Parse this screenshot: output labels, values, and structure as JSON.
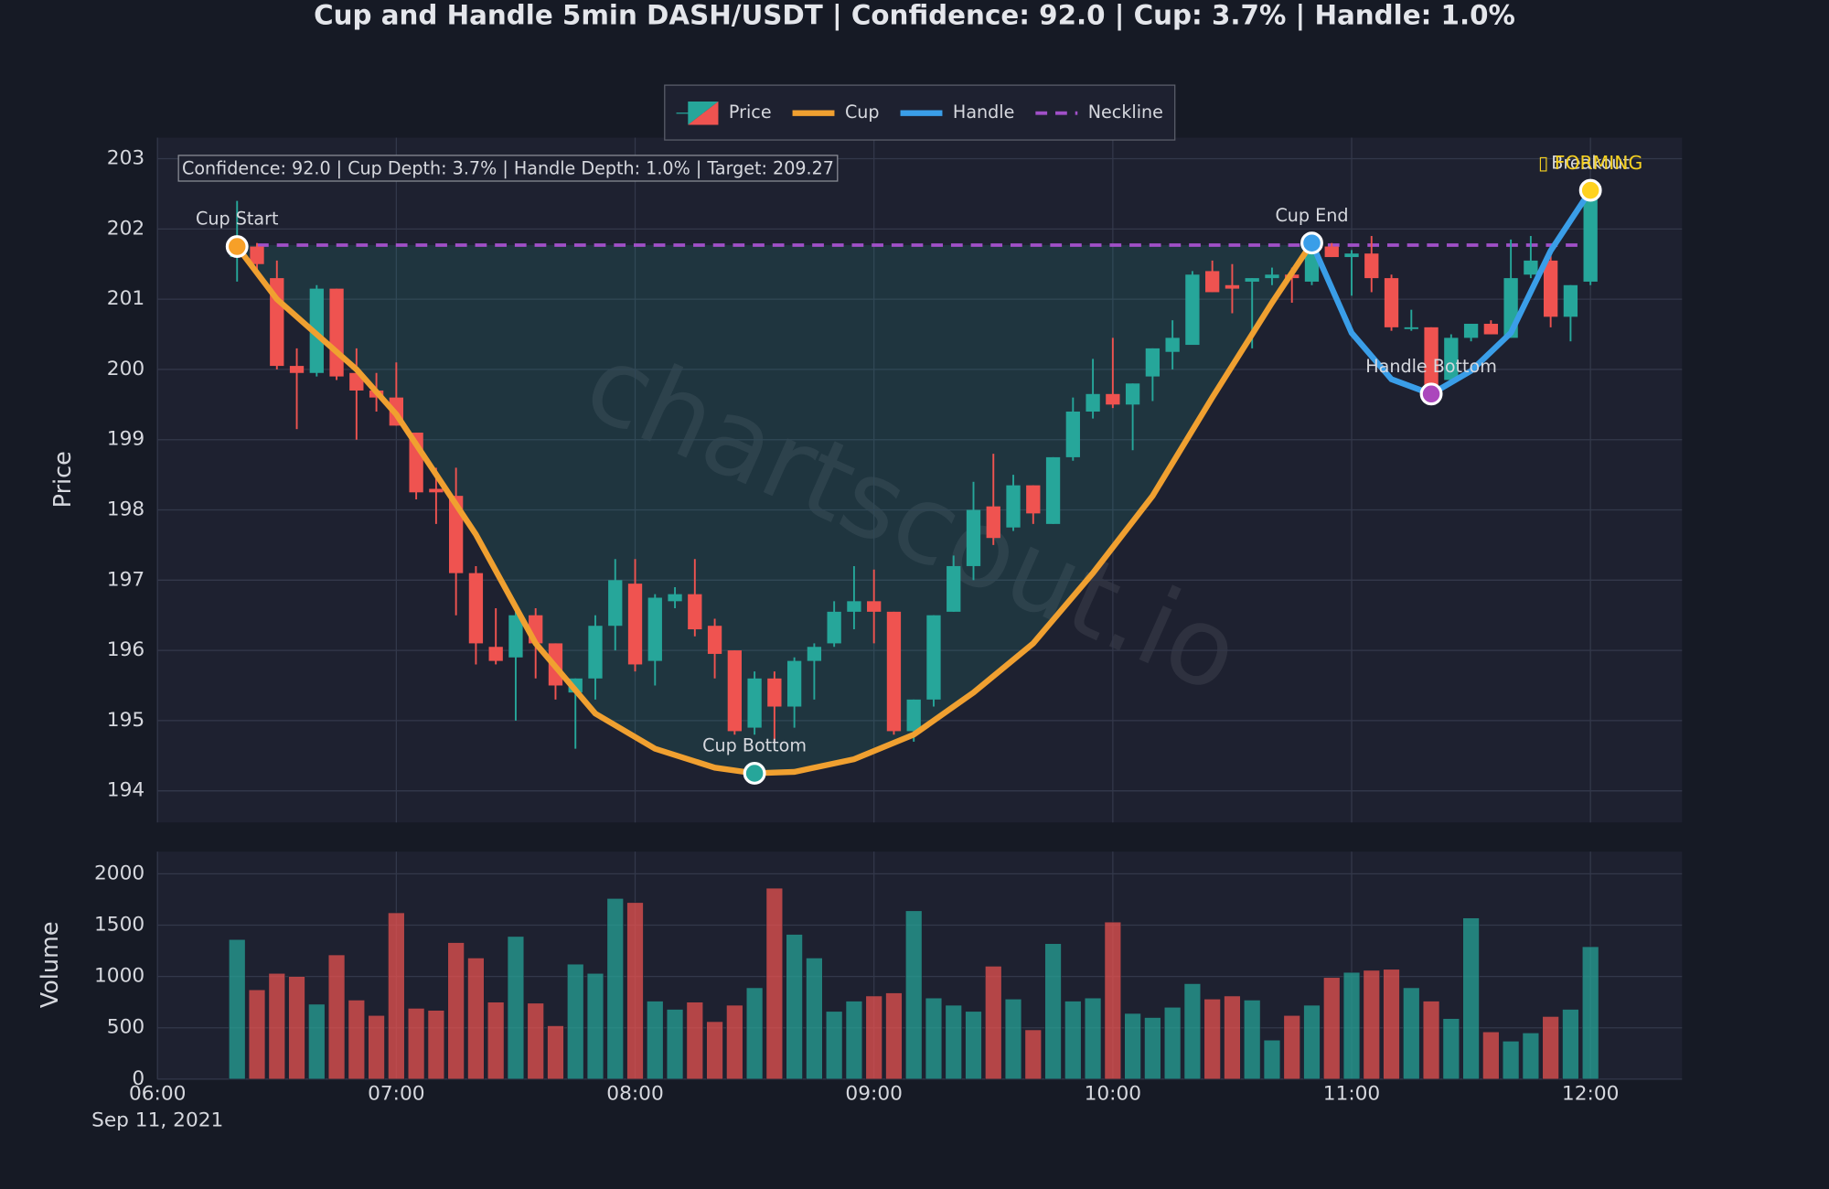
{
  "chart_data": {
    "type": "candlestick",
    "title": "Cup and Handle 5min DASH/USDT | Confidence: 92.0 | Cup: 3.7% | Handle: 1.0%",
    "annotation": "Confidence: 92.0 | Cup Depth: 3.7% | Handle Depth: 1.0% | Target: 209.27",
    "watermark": "chartscout.io",
    "status": "▯ FORMING",
    "ylabel": "Price",
    "volume_label": "Volume",
    "date_label": "Sep 11, 2021",
    "legend_name": "Price",
    "legend": "upper center",
    "grid": true,
    "up_color": "#26a69a",
    "down_color": "#ef5350",
    "x": [
      "06:20",
      "06:25",
      "06:30",
      "06:35",
      "06:40",
      "06:45",
      "06:50",
      "06:55",
      "07:00",
      "07:05",
      "07:10",
      "07:15",
      "07:20",
      "07:25",
      "07:30",
      "07:35",
      "07:40",
      "07:45",
      "07:50",
      "07:55",
      "08:00",
      "08:05",
      "08:10",
      "08:15",
      "08:20",
      "08:25",
      "08:30",
      "08:35",
      "08:40",
      "08:45",
      "08:50",
      "08:55",
      "09:00",
      "09:05",
      "09:10",
      "09:15",
      "09:20",
      "09:25",
      "09:30",
      "09:35",
      "09:40",
      "09:45",
      "09:50",
      "09:55",
      "10:00",
      "10:05",
      "10:10",
      "10:15",
      "10:20",
      "10:25",
      "10:30",
      "10:35",
      "10:40",
      "10:45",
      "10:50",
      "10:55",
      "11:00",
      "11:05",
      "11:10",
      "11:15",
      "11:20",
      "11:25",
      "11:30",
      "11:35",
      "11:40",
      "11:45",
      "11:50",
      "11:55",
      "12:00"
    ],
    "open": [
      201.6,
      201.75,
      201.3,
      200.05,
      199.95,
      201.15,
      199.95,
      199.7,
      199.6,
      199.1,
      198.3,
      198.2,
      197.1,
      196.05,
      195.9,
      196.5,
      196.1,
      195.4,
      195.6,
      196.35,
      196.95,
      195.85,
      196.7,
      196.8,
      196.35,
      196.0,
      194.9,
      195.6,
      195.2,
      195.85,
      196.1,
      196.55,
      196.7,
      196.55,
      194.85,
      195.3,
      196.55,
      197.2,
      198.05,
      197.75,
      198.35,
      197.8,
      198.75,
      199.4,
      199.65,
      199.5,
      199.9,
      200.25,
      200.35,
      201.4,
      201.2,
      201.25,
      201.3,
      201.35,
      201.25,
      201.75,
      201.6,
      201.65,
      201.3,
      200.6,
      200.6,
      199.85,
      200.45,
      200.65,
      200.45,
      201.35,
      201.55,
      200.75,
      201.25
    ],
    "high": [
      202.4,
      201.8,
      201.55,
      200.3,
      201.2,
      201.15,
      200.3,
      199.95,
      200.1,
      199.1,
      198.6,
      198.6,
      197.2,
      196.6,
      196.6,
      196.6,
      196.1,
      195.6,
      196.5,
      197.3,
      197.3,
      196.8,
      196.9,
      197.3,
      196.45,
      196.0,
      195.7,
      195.7,
      195.9,
      196.1,
      196.7,
      197.2,
      197.15,
      196.55,
      195.3,
      196.5,
      197.35,
      198.4,
      198.8,
      198.5,
      198.35,
      198.75,
      199.6,
      200.15,
      200.45,
      199.8,
      200.3,
      200.7,
      201.4,
      201.55,
      201.5,
      201.3,
      201.45,
      201.45,
      201.75,
      201.8,
      201.7,
      201.9,
      201.35,
      200.85,
      200.6,
      200.5,
      200.65,
      200.7,
      201.85,
      201.9,
      201.75,
      201.2,
      202.6
    ],
    "low": [
      201.25,
      201.4,
      200.0,
      199.15,
      199.9,
      199.85,
      199.0,
      199.4,
      199.2,
      198.15,
      197.8,
      196.5,
      195.8,
      195.8,
      195.0,
      195.6,
      195.3,
      194.6,
      195.3,
      196.0,
      195.7,
      195.5,
      196.6,
      196.2,
      195.6,
      194.8,
      194.8,
      194.7,
      194.9,
      195.3,
      196.05,
      196.3,
      196.1,
      194.8,
      194.7,
      195.2,
      196.55,
      197.0,
      197.5,
      197.7,
      197.8,
      197.8,
      198.7,
      199.3,
      199.45,
      198.85,
      199.55,
      200.0,
      200.35,
      201.1,
      200.8,
      200.3,
      201.2,
      200.95,
      201.2,
      201.6,
      201.05,
      201.1,
      200.55,
      200.55,
      199.6,
      199.85,
      200.4,
      200.5,
      200.45,
      201.3,
      200.6,
      200.4,
      201.2
    ],
    "close": [
      201.75,
      201.5,
      200.05,
      199.95,
      201.15,
      199.9,
      199.7,
      199.6,
      199.2,
      198.25,
      198.25,
      197.1,
      196.1,
      195.85,
      196.5,
      196.1,
      195.5,
      195.6,
      196.35,
      197.0,
      195.8,
      196.75,
      196.8,
      196.3,
      195.95,
      194.85,
      195.6,
      195.2,
      195.85,
      196.05,
      196.55,
      196.7,
      196.55,
      194.85,
      195.3,
      196.5,
      197.2,
      198.0,
      197.6,
      198.35,
      197.95,
      198.75,
      199.4,
      199.65,
      199.5,
      199.8,
      200.3,
      200.45,
      201.35,
      201.1,
      201.15,
      201.3,
      201.35,
      201.3,
      201.7,
      201.6,
      201.65,
      201.3,
      200.6,
      200.6,
      199.7,
      200.45,
      200.65,
      200.5,
      201.3,
      201.55,
      200.75,
      201.2,
      202.55
    ],
    "volume": [
      1360,
      870,
      1030,
      1000,
      730,
      1210,
      770,
      620,
      1620,
      690,
      670,
      1330,
      1180,
      750,
      1390,
      740,
      520,
      1120,
      1030,
      1760,
      1720,
      760,
      680,
      750,
      560,
      720,
      890,
      1860,
      1410,
      1180,
      660,
      760,
      810,
      840,
      1640,
      790,
      720,
      660,
      1100,
      780,
      480,
      1320,
      760,
      790,
      1530,
      640,
      600,
      700,
      930,
      780,
      810,
      770,
      380,
      620,
      720,
      990,
      1040,
      1060,
      1070,
      890,
      760,
      590,
      1570,
      460,
      370,
      450,
      610,
      680,
      1290
    ],
    "xlim": [
      "06:00",
      "12:23"
    ],
    "xticks": [
      "06:00",
      "07:00",
      "08:00",
      "09:00",
      "10:00",
      "11:00",
      "12:00"
    ],
    "ylim": [
      193.55,
      203.3
    ],
    "yticks": [
      194,
      195,
      196,
      197,
      198,
      199,
      200,
      201,
      202,
      203
    ],
    "volume_ylim": [
      0,
      2216
    ],
    "volume_yticks": [
      0,
      500,
      1000,
      1500,
      2000
    ],
    "lines": [
      {
        "name": "Cup",
        "color": "#f0a030",
        "x": [
          "06:20",
          "06:30",
          "06:50",
          "07:00",
          "07:20",
          "07:35",
          "07:50",
          "08:05",
          "08:20",
          "08:30",
          "08:40",
          "08:55",
          "09:10",
          "09:25",
          "09:40",
          "09:55",
          "10:10",
          "10:25",
          "10:40",
          "10:50"
        ],
        "values": [
          201.75,
          201.0,
          200.0,
          199.36,
          197.65,
          196.1,
          195.1,
          194.6,
          194.33,
          194.25,
          194.27,
          194.45,
          194.8,
          195.4,
          196.1,
          197.1,
          198.2,
          199.6,
          200.95,
          201.8
        ]
      },
      {
        "name": "Handle",
        "color": "#3a9ee8",
        "x": [
          "10:50",
          "11:00",
          "11:10",
          "11:20",
          "11:30",
          "11:40",
          "11:50",
          "12:00"
        ],
        "values": [
          201.8,
          200.52,
          199.86,
          199.65,
          199.98,
          200.52,
          201.69,
          202.55
        ]
      },
      {
        "name": "Neckline",
        "color": "#a150c8",
        "style": "dashed",
        "x": [
          "06:25",
          "12:00"
        ],
        "values": [
          201.77,
          201.77
        ]
      }
    ],
    "points": [
      {
        "label": "Cup Start",
        "x": "06:20",
        "value": 201.75,
        "color": "#f7a028"
      },
      {
        "label": "Cup Bottom",
        "x": "08:30",
        "value": 194.25,
        "color": "#26a69a"
      },
      {
        "label": "Cup End",
        "x": "10:50",
        "value": 201.8,
        "color": "#3a9ee8"
      },
      {
        "label": "Handle Bottom",
        "x": "11:20",
        "value": 199.65,
        "color": "#ab47bc"
      },
      {
        "label": "Breakout",
        "x": "12:00",
        "value": 202.55,
        "color": "#ffd21f"
      }
    ]
  }
}
